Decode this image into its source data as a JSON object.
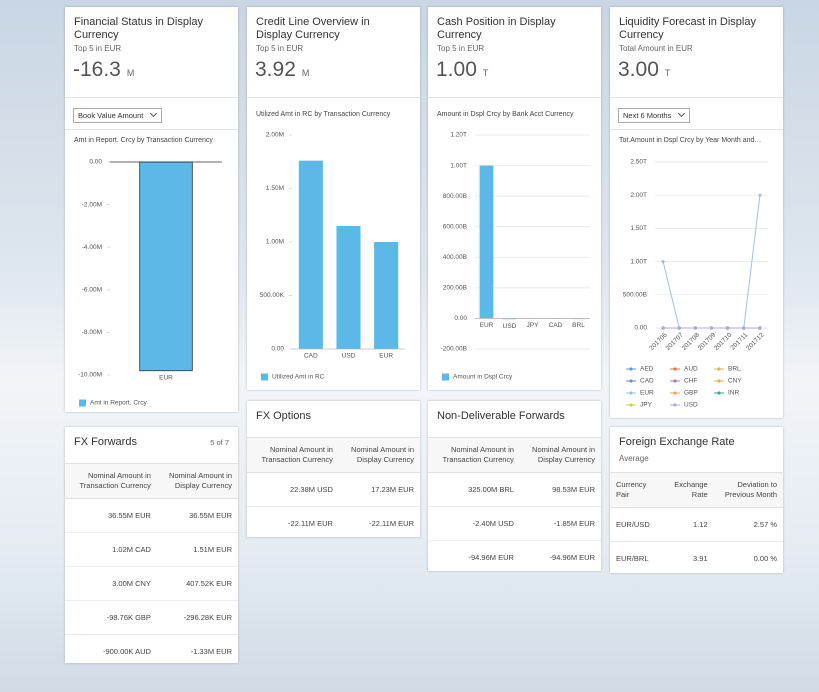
{
  "cards": [
    {
      "title": "Financial Status in Display Currency",
      "subtitle": "Top 5 in EUR",
      "kpi": "-16.3",
      "unit": "M",
      "dropdown": "Book Value Amount",
      "chart": {
        "type": "bar",
        "title": "Amt in Report. Crcy by Transaction Currency",
        "categories": [
          "EUR"
        ],
        "series": [
          {
            "name": "Amt in Report. Crcy",
            "color": "#5cb8e6",
            "values": [
              -9.8
            ]
          }
        ],
        "ylim": [
          -10,
          0
        ],
        "grid": false,
        "yticks": [
          {
            "value": 0,
            "label": "0.00"
          },
          {
            "value": -2,
            "label": "-2.00M"
          },
          {
            "value": -4,
            "label": "-4.00M"
          },
          {
            "value": -6,
            "label": "-6.00M"
          },
          {
            "value": -8,
            "label": "-8.00M"
          },
          {
            "value": -10,
            "label": "-10.00M"
          }
        ]
      }
    },
    {
      "title": "Credit Line Overview in Display Currency",
      "subtitle": "Top 5 in EUR",
      "kpi": "3.92",
      "unit": "M",
      "chart": {
        "type": "bar",
        "title": "Utilized Amt in RC by Transaction Currency",
        "categories": [
          "CAD",
          "USD",
          "EUR"
        ],
        "series": [
          {
            "name": "Utilized Amt in RC",
            "color": "#5cb8e6",
            "values": [
              1.76,
              1.15,
              1.0
            ]
          }
        ],
        "ylim": [
          0,
          2
        ],
        "grid": false,
        "yticks": [
          {
            "value": 0,
            "label": "0.00"
          },
          {
            "value": 0.5,
            "label": "500.00K"
          },
          {
            "value": 1,
            "label": "1.00M"
          },
          {
            "value": 1.5,
            "label": "1.50M"
          },
          {
            "value": 2,
            "label": "2.00M"
          }
        ]
      }
    },
    {
      "title": "Cash Position in Display Currency",
      "subtitle": "Top 5 in EUR",
      "kpi": "1.00",
      "unit": "T",
      "chart": {
        "type": "bar",
        "title": "Amount in Dspl Crcy by Bank Acct Currency",
        "categories": [
          "EUR",
          "USD",
          "JPY",
          "CAD",
          "BRL"
        ],
        "series": [
          {
            "name": "Amount in Dspl Crcy",
            "color": "#5cb8e6",
            "values": [
              1000,
              -5,
              3,
              2,
              1
            ]
          }
        ],
        "ylim": [
          -200,
          1200
        ],
        "grid": true,
        "yticks": [
          {
            "value": -200,
            "label": "-200.00B"
          },
          {
            "value": 0,
            "label": "0.00"
          },
          {
            "value": 200,
            "label": "200.00B"
          },
          {
            "value": 400,
            "label": "400.00B"
          },
          {
            "value": 600,
            "label": "600.00B"
          },
          {
            "value": 800,
            "label": "800.00B"
          },
          {
            "value": 1000,
            "label": "1.00T"
          },
          {
            "value": 1200,
            "label": "1.20T"
          }
        ]
      }
    },
    {
      "title": "Liquidity Forecast in Display Currency",
      "subtitle": "Total Amount in EUR",
      "kpi": "3.00",
      "unit": "T",
      "dropdown": "Next 6 Months",
      "chart": {
        "type": "line",
        "title": "Tot.Amount in Dspl Crcy by Year Month and…",
        "categories": [
          "201706",
          "201707",
          "201708",
          "201709",
          "201710",
          "201711",
          "201712"
        ],
        "ylim": [
          0,
          2500
        ],
        "grid": true,
        "yticks": [
          {
            "value": 0,
            "label": "0.00"
          },
          {
            "value": 500,
            "label": "500.00B"
          },
          {
            "value": 1000,
            "label": "1.00T"
          },
          {
            "value": 1500,
            "label": "1.50T"
          },
          {
            "value": 2000,
            "label": "2.00T"
          },
          {
            "value": 2500,
            "label": "2.50T"
          }
        ],
        "series": [
          {
            "name": "AED",
            "color": "#5899da",
            "values": [
              0,
              0,
              0,
              0,
              0,
              0,
              0
            ]
          },
          {
            "name": "AUD",
            "color": "#e8743b",
            "values": [
              0,
              0,
              0,
              0,
              0,
              0,
              0
            ]
          },
          {
            "name": "BRL",
            "color": "#d8b84a",
            "values": [
              0,
              0,
              0,
              0,
              0,
              0,
              0
            ]
          },
          {
            "name": "CAD",
            "color": "#6c8ebf",
            "values": [
              0,
              0,
              0,
              0,
              0,
              0,
              0
            ]
          },
          {
            "name": "CHF",
            "color": "#a77bca",
            "values": [
              0,
              0,
              0,
              0,
              0,
              0,
              0
            ]
          },
          {
            "name": "CNY",
            "color": "#e8b33b",
            "values": [
              0,
              0,
              0,
              0,
              0,
              0,
              0
            ]
          },
          {
            "name": "EUR",
            "color": "#9ec3d8",
            "values": [
              1000,
              0,
              0,
              0,
              0,
              0,
              2000
            ]
          },
          {
            "name": "GBP",
            "color": "#f0a35e",
            "values": [
              0,
              0,
              0,
              0,
              0,
              0,
              0
            ]
          },
          {
            "name": "INR",
            "color": "#3fa39a",
            "values": [
              0,
              0,
              0,
              0,
              0,
              0,
              0
            ]
          },
          {
            "name": "JPY",
            "color": "#c8d24a",
            "values": [
              0,
              0,
              0,
              0,
              0,
              0,
              0
            ]
          },
          {
            "name": "USD",
            "color": "#b7a6e0",
            "values": [
              0,
              0,
              0,
              0,
              0,
              0,
              0
            ]
          }
        ]
      }
    }
  ],
  "tables": [
    {
      "title": "FX Forwards",
      "count": "5 of 7",
      "headers": [
        "Nominal Amount in Transaction Currency",
        "Nominal Amount in Display Currency"
      ],
      "rows": [
        [
          "36.55M EUR",
          "36.55M EUR"
        ],
        [
          "1.02M CAD",
          "1.51M EUR"
        ],
        [
          "3.00M CNY",
          "407.52K EUR"
        ],
        [
          "-98.76K GBP",
          "-296.28K EUR"
        ],
        [
          "-900.00K AUD",
          "-1.33M EUR"
        ]
      ]
    },
    {
      "title": "FX Options",
      "headers": [
        "Nominal Amount in Transaction Currency",
        "Nominal Amount in Display Currency"
      ],
      "rows": [
        [
          "22.38M USD",
          "17.23M EUR"
        ],
        [
          "-22.11M EUR",
          "-22.11M EUR"
        ]
      ]
    },
    {
      "title": "Non-Deliverable Forwards",
      "headers": [
        "Nominal Amount in Transaction Currency",
        "Nominal Amount in Display Currency"
      ],
      "rows": [
        [
          "325.00M BRL",
          "98.53M EUR"
        ],
        [
          "-2.40M USD",
          "-1.85M EUR"
        ],
        [
          "-94.96M EUR",
          "-94.96M EUR"
        ]
      ]
    },
    {
      "title": "Foreign Exchange Rate",
      "subtitle": "Average",
      "headers": [
        "Currency Pair",
        "Exchange Rate",
        "Deviation to Previous Month"
      ],
      "rows": [
        [
          "EUR/USD",
          "1.12",
          "2.57 %"
        ],
        [
          "EUR/BRL",
          "3.91",
          "0.00 %"
        ]
      ]
    }
  ]
}
